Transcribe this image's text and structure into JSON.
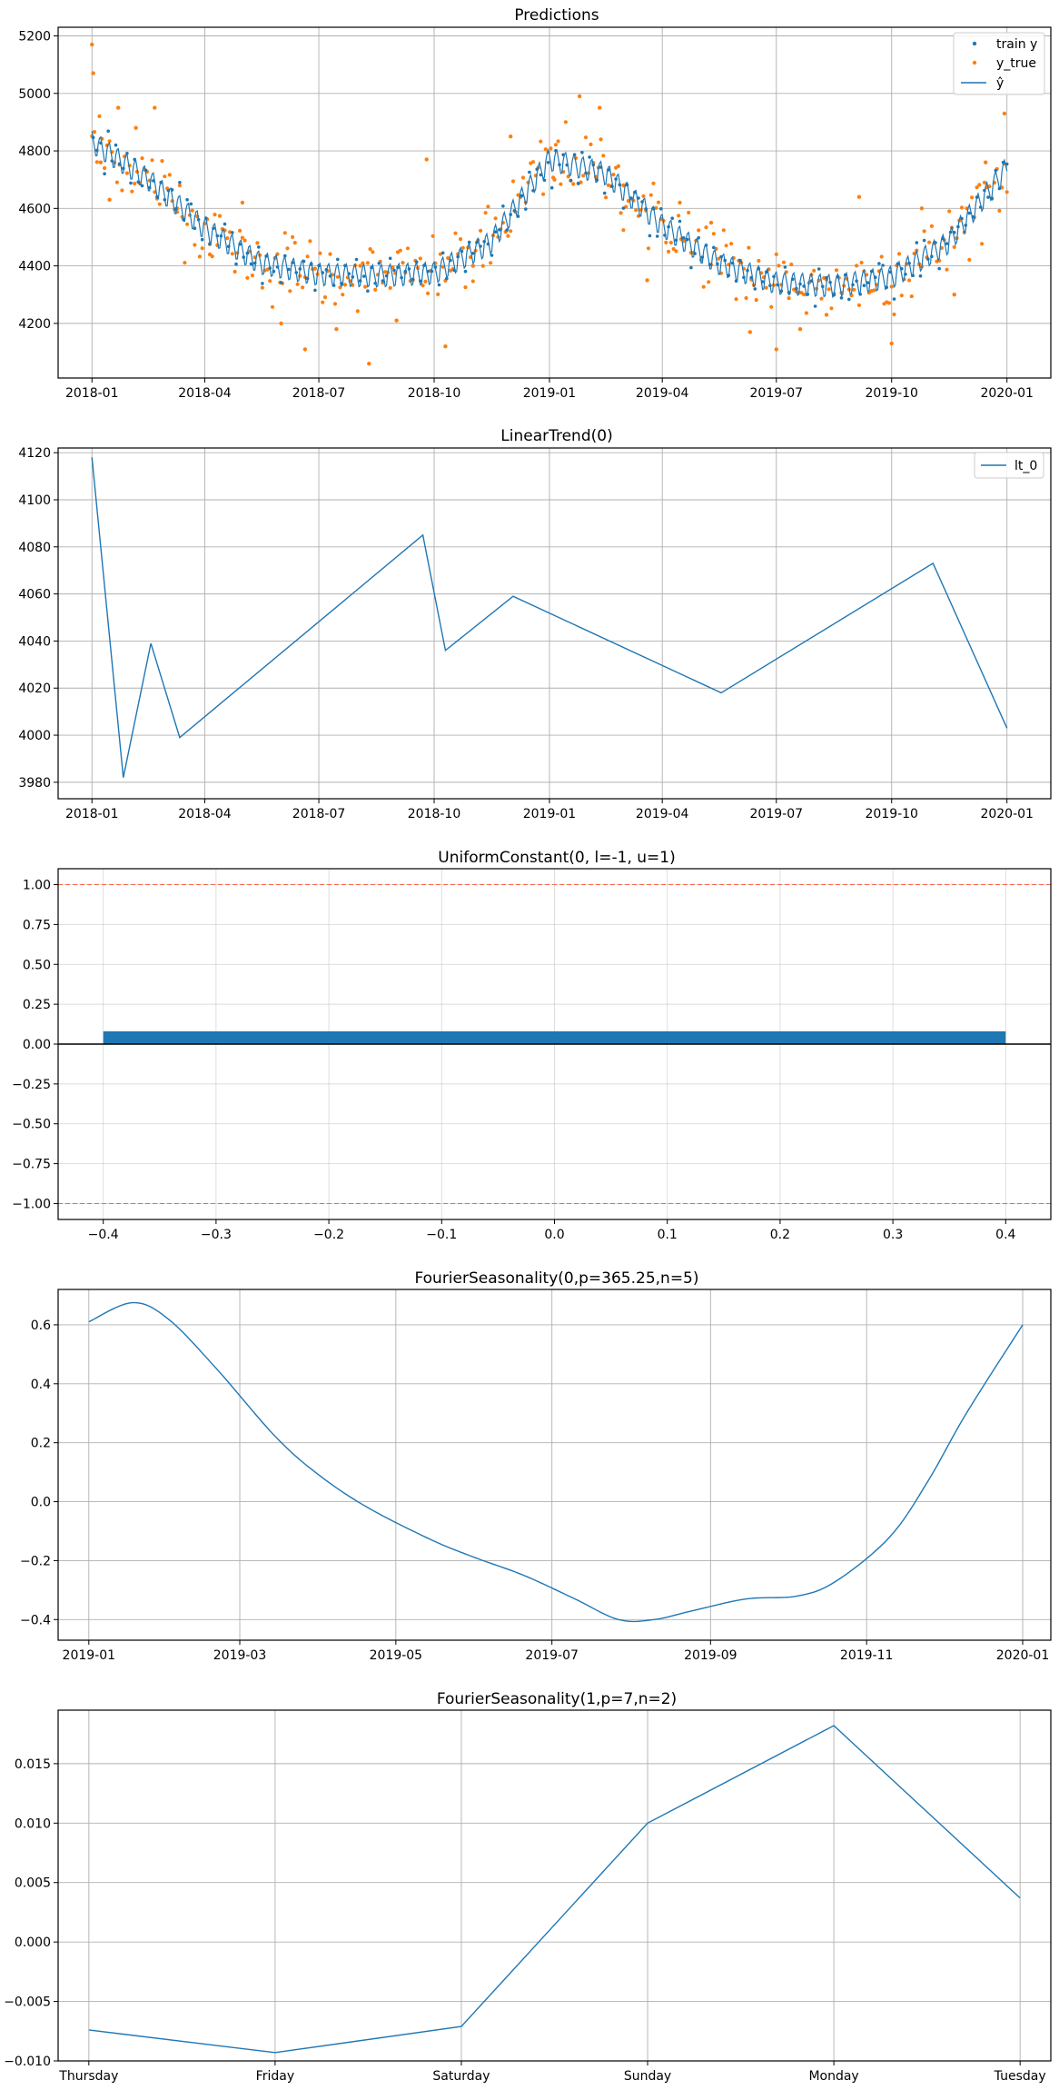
{
  "colors": {
    "blue": "#1f77b4",
    "orange": "#ff7f0e",
    "grid": "#b0b0b0",
    "ref": "#ff6347"
  },
  "chart_data": [
    {
      "type": "scatter",
      "title": "Predictions",
      "xlim": [
        "2017-12-05",
        "2020-02-05"
      ],
      "ylim": [
        4010,
        5230
      ],
      "xticks": [
        "2018-01",
        "2018-04",
        "2018-07",
        "2018-10",
        "2019-01",
        "2019-04",
        "2019-07",
        "2019-10",
        "2020-01"
      ],
      "yticks": [
        4200,
        4400,
        4600,
        4800,
        5000,
        5200
      ],
      "grid": true,
      "legend": "top-right",
      "legend_entries": [
        "train y",
        "y_true",
        "ŷ"
      ],
      "fitted_yhat": {
        "label": "ŷ",
        "period_days": 365.25,
        "weekly_amplitude": 70,
        "x": [
          "2018-01-01",
          "2018-02-15",
          "2018-04-01",
          "2018-05-15",
          "2018-07-01",
          "2018-08-15",
          "2018-10-01",
          "2018-11-15",
          "2019-01-01",
          "2019-02-15",
          "2019-04-01",
          "2019-05-15",
          "2019-07-01",
          "2019-08-15",
          "2019-10-01",
          "2019-11-15",
          "2020-01-01"
        ],
        "y": [
          4830,
          4700,
          4530,
          4410,
          4370,
          4365,
          4375,
          4480,
          4770,
          4720,
          4540,
          4410,
          4340,
          4330,
          4360,
          4480,
          4740
        ]
      },
      "y_true_scatter": {
        "label": "y_true",
        "x": [
          "2018-01-01",
          "2018-01-02",
          "2018-01-08",
          "2018-01-15",
          "2018-01-22",
          "2018-02-05",
          "2018-02-20",
          "2018-03-10",
          "2018-04-05",
          "2018-05-01",
          "2018-06-01",
          "2018-06-20",
          "2018-07-15",
          "2018-08-10",
          "2018-09-01",
          "2018-09-25",
          "2018-10-10",
          "2018-11-01",
          "2018-12-01",
          "2019-01-05",
          "2019-01-25",
          "2019-02-10",
          "2019-03-01",
          "2019-03-20",
          "2019-04-15",
          "2019-05-10",
          "2019-06-10",
          "2019-07-01",
          "2019-07-20",
          "2019-08-10",
          "2019-09-05",
          "2019-10-01",
          "2019-10-25",
          "2019-11-20",
          "2019-12-15",
          "2019-12-30"
        ],
        "y": [
          5170,
          5070,
          4760,
          4630,
          4950,
          4880,
          4950,
          4600,
          4440,
          4620,
          4200,
          4110,
          4180,
          4060,
          4210,
          4770,
          4120,
          4400,
          4850,
          4700,
          4990,
          4950,
          4680,
          4350,
          4620,
          4550,
          4170,
          4110,
          4180,
          4230,
          4640,
          4130,
          4600,
          4300,
          4760,
          4930
        ]
      }
    },
    {
      "type": "line",
      "title": "LinearTrend(0)",
      "xlim": [
        "2017-12-05",
        "2020-02-05"
      ],
      "ylim": [
        3973,
        4122
      ],
      "xticks": [
        "2018-01",
        "2018-04",
        "2018-07",
        "2018-10",
        "2019-01",
        "2019-04",
        "2019-07",
        "2019-10",
        "2020-01"
      ],
      "yticks": [
        3980,
        4000,
        4020,
        4040,
        4060,
        4080,
        4100,
        4120
      ],
      "grid": true,
      "legend": "top-right",
      "series": [
        {
          "name": "lt_0",
          "x": [
            "2018-01-01",
            "2018-01-26",
            "2018-02-17",
            "2018-03-12",
            "2018-09-22",
            "2018-10-10",
            "2018-12-03",
            "2019-05-18",
            "2019-11-03",
            "2020-01-01"
          ],
          "y": [
            4118,
            3982,
            4039,
            3999,
            4085,
            4036,
            4059,
            4018,
            4073,
            4003
          ]
        }
      ]
    },
    {
      "type": "bar",
      "title": "UniformConstant(0, l=-1, u=1)",
      "xlim": [
        -0.44,
        0.44
      ],
      "ylim": [
        -1.1,
        1.1
      ],
      "xticks": [
        -0.4,
        -0.3,
        -0.2,
        -0.1,
        0.0,
        0.1,
        0.2,
        0.3,
        0.4
      ],
      "xtick_labels": [
        "−0.4",
        "−0.3",
        "−0.2",
        "−0.1",
        "0.0",
        "0.1",
        "0.2",
        "0.3",
        "0.4"
      ],
      "yticks": [
        1.0,
        0.75,
        0.5,
        0.25,
        0.0,
        -0.25,
        -0.5,
        -0.75,
        -1.0
      ],
      "ytick_labels": [
        "1.00",
        "0.75",
        "0.50",
        "0.25",
        "0.00",
        "−0.25",
        "−0.50",
        "−0.75",
        "−1.00"
      ],
      "grid": true,
      "bars": [
        {
          "x_from": -0.4,
          "x_to": 0.4,
          "value": 0.08
        }
      ],
      "reference_lines": [
        1.0,
        -1.0
      ]
    },
    {
      "type": "line",
      "title": "FourierSeasonality(0,p=365.25,n=5)",
      "xlim": [
        "2018-12-20",
        "2020-01-12"
      ],
      "ylim": [
        -0.47,
        0.72
      ],
      "xticks": [
        "2019-01",
        "2019-03",
        "2019-05",
        "2019-07",
        "2019-09",
        "2019-11",
        "2020-01"
      ],
      "yticks": [
        0.6,
        0.4,
        0.2,
        0.0,
        -0.2,
        -0.4
      ],
      "ytick_labels": [
        "0.6",
        "0.4",
        "0.2",
        "0.0",
        "−0.2",
        "−0.4"
      ],
      "grid": true,
      "series": [
        {
          "x": [
            "2019-01-01",
            "2019-01-18",
            "2019-02-01",
            "2019-02-20",
            "2019-03-15",
            "2019-04-01",
            "2019-04-20",
            "2019-05-15",
            "2019-06-01",
            "2019-06-20",
            "2019-07-10",
            "2019-07-27",
            "2019-08-10",
            "2019-08-25",
            "2019-09-15",
            "2019-10-05",
            "2019-10-20",
            "2019-11-10",
            "2019-11-25",
            "2019-12-10",
            "2020-01-01"
          ],
          "y": [
            0.61,
            0.675,
            0.62,
            0.45,
            0.22,
            0.09,
            -0.02,
            -0.13,
            -0.19,
            -0.25,
            -0.33,
            -0.4,
            -0.4,
            -0.37,
            -0.33,
            -0.32,
            -0.27,
            -0.12,
            0.07,
            0.3,
            0.6
          ]
        }
      ]
    },
    {
      "type": "line",
      "title": "FourierSeasonality(1,p=7,n=2)",
      "xlim": [
        -0.165,
        5.165
      ],
      "ylim": [
        -0.01,
        0.0195
      ],
      "categories": [
        "Thursday",
        "Friday",
        "Saturday",
        "Sunday",
        "Monday",
        "Tuesday"
      ],
      "yticks": [
        0.015,
        0.01,
        0.005,
        0.0,
        -0.005,
        -0.01
      ],
      "ytick_labels": [
        "0.015",
        "0.010",
        "0.005",
        "0.000",
        "−0.005",
        "−0.010"
      ],
      "grid": true,
      "series": [
        {
          "values": [
            -0.0074,
            -0.0093,
            -0.0071,
            0.01,
            0.0182,
            0.0037
          ]
        }
      ]
    }
  ]
}
